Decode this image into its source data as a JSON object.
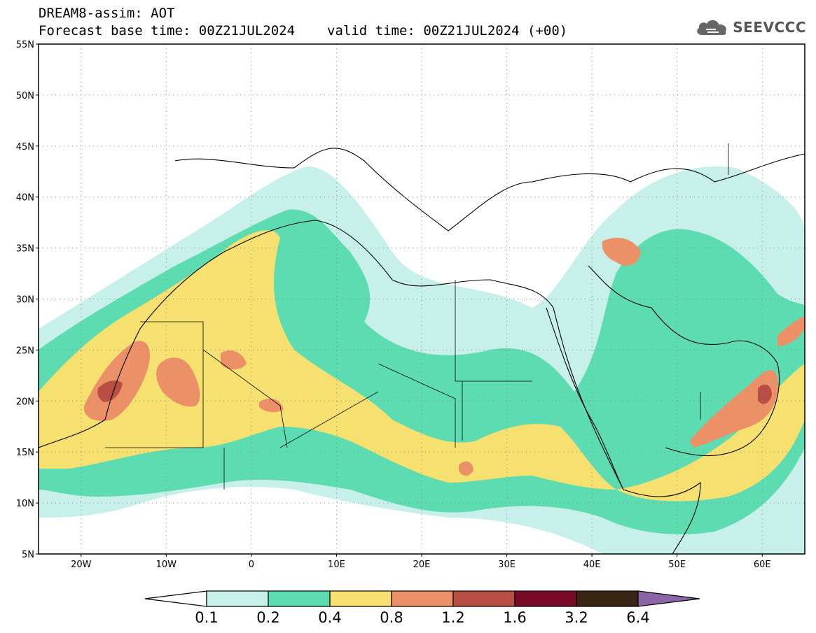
{
  "title": {
    "line1": "DREAM8-assim: AOT",
    "base_time": "Forecast base time: 00Z21JUL2024",
    "valid_time": "valid time: 00Z21JUL2024 (+00)"
  },
  "logo": {
    "text": "SEEVCCC"
  },
  "map": {
    "extent": {
      "lon_min": -25,
      "lon_max": 65,
      "lat_min": 5,
      "lat_max": 55
    },
    "lat_ticks": [
      {
        "lat": 55,
        "label": "55N"
      },
      {
        "lat": 50,
        "label": "50N"
      },
      {
        "lat": 45,
        "label": "45N"
      },
      {
        "lat": 40,
        "label": "40N"
      },
      {
        "lat": 35,
        "label": "35N"
      },
      {
        "lat": 30,
        "label": "30N"
      },
      {
        "lat": 25,
        "label": "25N"
      },
      {
        "lat": 20,
        "label": "20N"
      },
      {
        "lat": 15,
        "label": "15N"
      },
      {
        "lat": 10,
        "label": "10N"
      },
      {
        "lat": 5,
        "label": "5N"
      }
    ],
    "lon_ticks": [
      {
        "lon": -20,
        "label": "20W"
      },
      {
        "lon": -10,
        "label": "10W"
      },
      {
        "lon": 0,
        "label": "0"
      },
      {
        "lon": 10,
        "label": "10E"
      },
      {
        "lon": 20,
        "label": "20E"
      },
      {
        "lon": 30,
        "label": "30E"
      },
      {
        "lon": 40,
        "label": "40E"
      },
      {
        "lon": 50,
        "label": "50E"
      },
      {
        "lon": 60,
        "label": "60E"
      }
    ],
    "gridlines": "dotted"
  },
  "colorbar": {
    "levels": [
      "0.1",
      "0.2",
      "0.4",
      "0.8",
      "1.2",
      "1.6",
      "3.2",
      "6.4"
    ],
    "colors": [
      "#ffffff",
      "#c8f0ea",
      "#5cdcb0",
      "#f5e070",
      "#ec9068",
      "#b84e44",
      "#7a0828",
      "#3a2412",
      "#8c64a8"
    ]
  }
}
